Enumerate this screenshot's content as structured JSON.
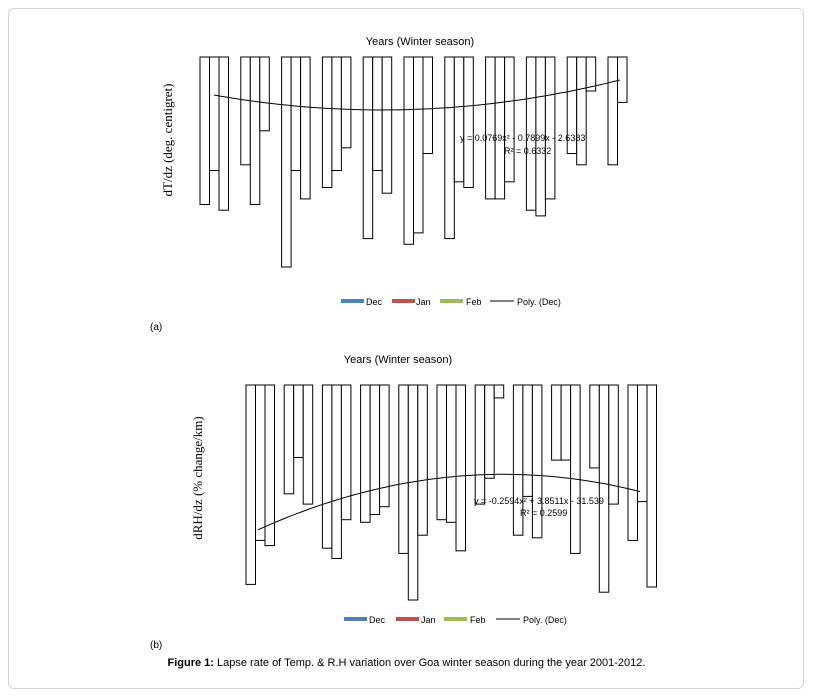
{
  "caption": {
    "label": "Figure 1:",
    "text": " Lapse rate of Temp. & R.H variation over Goa winter season during the year 2001-2012."
  },
  "colors": {
    "Dec": "#4f81bd",
    "Jan": "#c0504d",
    "Feb": "#9bbb59",
    "trend": "#000000"
  },
  "chart_data": [
    {
      "type": "bar",
      "panel_label": "(a)",
      "title": "Years (Winter season)",
      "ylabel": "dT/dz (deg. centigret)",
      "series_names": [
        "Dec",
        "Jan",
        "Feb"
      ],
      "groups": [
        [
          -13.0,
          -10.0,
          -13.5
        ],
        [
          -9.5,
          -13.0,
          -6.5
        ],
        [
          -18.5,
          -10.0,
          -12.5
        ],
        [
          -11.5,
          -10.0,
          -8.0
        ],
        [
          -16.0,
          -10.0,
          -12.0
        ],
        [
          -16.5,
          -15.5,
          -8.5
        ],
        [
          -16.0,
          -11.0,
          -11.5
        ],
        [
          -12.5,
          -12.5,
          -11.0
        ],
        [
          -13.5,
          -14.0,
          -12.5
        ],
        [
          -8.5,
          -9.5,
          -3.0
        ],
        [
          -9.5,
          -4.0,
          0.0
        ]
      ],
      "trendline": {
        "label": "Poly. (Dec)",
        "equation": "y = 0.0769x² - 0.7899x - 2.6383",
        "r2": "R² = 0.6332"
      },
      "legend": [
        "Dec",
        "Jan",
        "Feb",
        "Poly. (Dec)"
      ],
      "legend_position": "bottom",
      "ylim": [
        -18.5,
        0
      ]
    },
    {
      "type": "bar",
      "panel_label": "(b)",
      "title": "Years (Winter season)",
      "ylabel": "dRH/dz (% change/km)",
      "series_names": [
        "Dec",
        "Jan",
        "Feb"
      ],
      "groups": [
        [
          -38.5,
          -30.0,
          -31.0
        ],
        [
          -21.0,
          -14.0,
          -23.0
        ],
        [
          -31.5,
          -33.5,
          -26.0
        ],
        [
          -26.5,
          -25.0,
          -23.5
        ],
        [
          -32.5,
          -41.5,
          -29.0
        ],
        [
          -26.0,
          -26.5,
          -32.0
        ],
        [
          -23.0,
          -18.0,
          -2.5
        ],
        [
          -29.0,
          -21.5,
          -29.5
        ],
        [
          -14.5,
          -14.5,
          -32.5
        ],
        [
          -16.0,
          -40.0,
          -23.0
        ],
        [
          -30.0,
          -22.5,
          -39.0
        ]
      ],
      "trendline": {
        "label": "Poly. (Dec)",
        "equation": "y = -0.2594x² + 3.8511x - 31.539",
        "r2": "R² = 0.2599"
      },
      "legend": [
        "Dec",
        "Jan",
        "Feb",
        "Poly. (Dec)"
      ],
      "legend_position": "bottom",
      "ylim": [
        -41.5,
        0
      ]
    }
  ]
}
